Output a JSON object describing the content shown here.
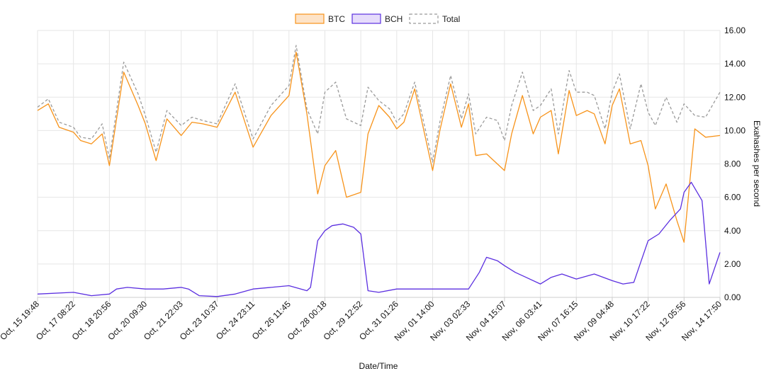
{
  "chart_data": {
    "type": "line",
    "title": "",
    "xlabel": "Date/Time",
    "ylabel": "Exahashes per second",
    "ylim": [
      0,
      16
    ],
    "y_ticks": [
      "0.00",
      "2.00",
      "4.00",
      "6.00",
      "8.00",
      "10.00",
      "12.00",
      "14.00",
      "16.00"
    ],
    "categories": [
      "Oct, 15 19:48",
      "Oct, 17 08:22",
      "Oct, 18 20:56",
      "Oct, 20 09:30",
      "Oct, 21 22:03",
      "Oct, 23 10:37",
      "Oct, 24 23:11",
      "Oct, 26 11:45",
      "Oct, 28 00:18",
      "Oct, 29 12:52",
      "Oct, 31 01:26",
      "Nov, 01 14:00",
      "Nov, 03 02:33",
      "Nov, 04 15:07",
      "Nov, 06 03:41",
      "Nov, 07 16:15",
      "Nov, 09 04:48",
      "Nov, 10 17:22",
      "Nov, 12 05:56",
      "Nov, 14 17:50"
    ],
    "legend_position": "top-center",
    "grid": true,
    "series": [
      {
        "name": "BTC",
        "color": "#f7931a",
        "x": [
          0,
          0.3,
          0.6,
          1.0,
          1.2,
          1.5,
          1.8,
          2.0,
          2.4,
          2.8,
          3.0,
          3.3,
          3.6,
          4.0,
          4.3,
          4.6,
          5.0,
          5.5,
          6.0,
          6.5,
          7.0,
          7.2,
          7.5,
          7.8,
          8.0,
          8.3,
          8.6,
          9.0,
          9.2,
          9.5,
          9.8,
          10.0,
          10.2,
          10.5,
          11.0,
          11.2,
          11.5,
          11.8,
          12.0,
          12.2,
          12.5,
          12.8,
          13.0,
          13.2,
          13.5,
          13.8,
          14.0,
          14.3,
          14.5,
          14.8,
          15.0,
          15.3,
          15.5,
          15.8,
          16.0,
          16.2,
          16.5,
          16.8,
          17.0,
          17.2,
          17.5,
          17.8,
          18.0,
          18.3,
          18.6,
          19.0
        ],
        "values": [
          11.2,
          11.6,
          10.2,
          9.9,
          9.4,
          9.2,
          9.8,
          7.9,
          13.5,
          11.5,
          10.4,
          8.2,
          10.7,
          9.7,
          10.5,
          10.4,
          10.2,
          12.3,
          9.0,
          10.9,
          12.1,
          14.7,
          11.0,
          6.2,
          7.9,
          8.8,
          6.0,
          6.3,
          9.8,
          11.5,
          10.8,
          10.1,
          10.5,
          12.5,
          7.6,
          10.0,
          12.8,
          10.2,
          11.6,
          8.5,
          8.6,
          8.0,
          7.6,
          9.8,
          12.1,
          9.8,
          10.8,
          11.2,
          8.6,
          12.4,
          10.9,
          11.2,
          11.0,
          9.2,
          11.5,
          12.5,
          9.2,
          9.4,
          7.9,
          5.3,
          6.8,
          4.6,
          3.3,
          10.1,
          9.6,
          9.7
        ]
      },
      {
        "name": "BCH",
        "color": "#5b2fe0",
        "x": [
          0,
          1.0,
          1.5,
          2.0,
          2.2,
          2.5,
          3.0,
          3.5,
          4.0,
          4.2,
          4.5,
          5.0,
          5.5,
          6.0,
          6.5,
          7.0,
          7.5,
          7.6,
          7.8,
          8.0,
          8.2,
          8.5,
          8.8,
          9.0,
          9.2,
          9.5,
          10.0,
          10.5,
          11.0,
          11.5,
          12.0,
          12.3,
          12.5,
          12.8,
          13.0,
          13.3,
          13.6,
          14.0,
          14.3,
          14.6,
          15.0,
          15.5,
          16.0,
          16.3,
          16.6,
          17.0,
          17.3,
          17.6,
          17.9,
          18.0,
          18.2,
          18.5,
          18.7,
          19.0
        ],
        "values": [
          0.2,
          0.3,
          0.1,
          0.2,
          0.5,
          0.6,
          0.5,
          0.5,
          0.6,
          0.5,
          0.1,
          0.05,
          0.2,
          0.5,
          0.6,
          0.7,
          0.4,
          0.6,
          3.4,
          4.0,
          4.3,
          4.4,
          4.2,
          3.8,
          0.4,
          0.3,
          0.5,
          0.5,
          0.5,
          0.5,
          0.5,
          1.5,
          2.4,
          2.2,
          1.9,
          1.5,
          1.2,
          0.8,
          1.2,
          1.4,
          1.1,
          1.4,
          1.0,
          0.8,
          0.9,
          3.4,
          3.8,
          4.6,
          5.3,
          6.3,
          6.9,
          5.8,
          0.8,
          2.7
        ]
      },
      {
        "name": "Total",
        "color": "#9a9a9a",
        "dashed": true,
        "x": [
          0,
          0.3,
          0.6,
          1.0,
          1.2,
          1.5,
          1.8,
          2.0,
          2.4,
          2.8,
          3.0,
          3.3,
          3.6,
          4.0,
          4.3,
          4.6,
          5.0,
          5.5,
          6.0,
          6.5,
          7.0,
          7.2,
          7.5,
          7.8,
          8.0,
          8.3,
          8.6,
          9.0,
          9.2,
          9.5,
          9.8,
          10.0,
          10.2,
          10.5,
          11.0,
          11.2,
          11.5,
          11.8,
          12.0,
          12.2,
          12.5,
          12.8,
          13.0,
          13.2,
          13.5,
          13.8,
          14.0,
          14.3,
          14.5,
          14.8,
          15.0,
          15.3,
          15.5,
          15.8,
          16.0,
          16.2,
          16.5,
          16.8,
          17.0,
          17.2,
          17.5,
          17.8,
          18.0,
          18.3,
          18.6,
          19.0
        ],
        "values": [
          11.4,
          11.9,
          10.5,
          10.2,
          9.6,
          9.5,
          10.4,
          8.3,
          14.1,
          12.2,
          10.9,
          8.7,
          11.2,
          10.3,
          10.8,
          10.6,
          10.4,
          12.8,
          9.5,
          11.5,
          12.7,
          15.1,
          11.3,
          9.8,
          12.3,
          12.9,
          10.7,
          10.3,
          12.6,
          11.8,
          11.3,
          10.5,
          11.0,
          12.9,
          8.1,
          10.5,
          13.3,
          10.7,
          12.2,
          9.8,
          10.8,
          10.6,
          9.4,
          11.5,
          13.5,
          11.2,
          11.5,
          12.5,
          9.8,
          13.6,
          12.3,
          12.3,
          12.1,
          10.1,
          12.3,
          13.4,
          10.1,
          12.8,
          11.1,
          10.3,
          12.0,
          10.5,
          11.6,
          10.9,
          10.8,
          12.3
        ]
      }
    ]
  }
}
